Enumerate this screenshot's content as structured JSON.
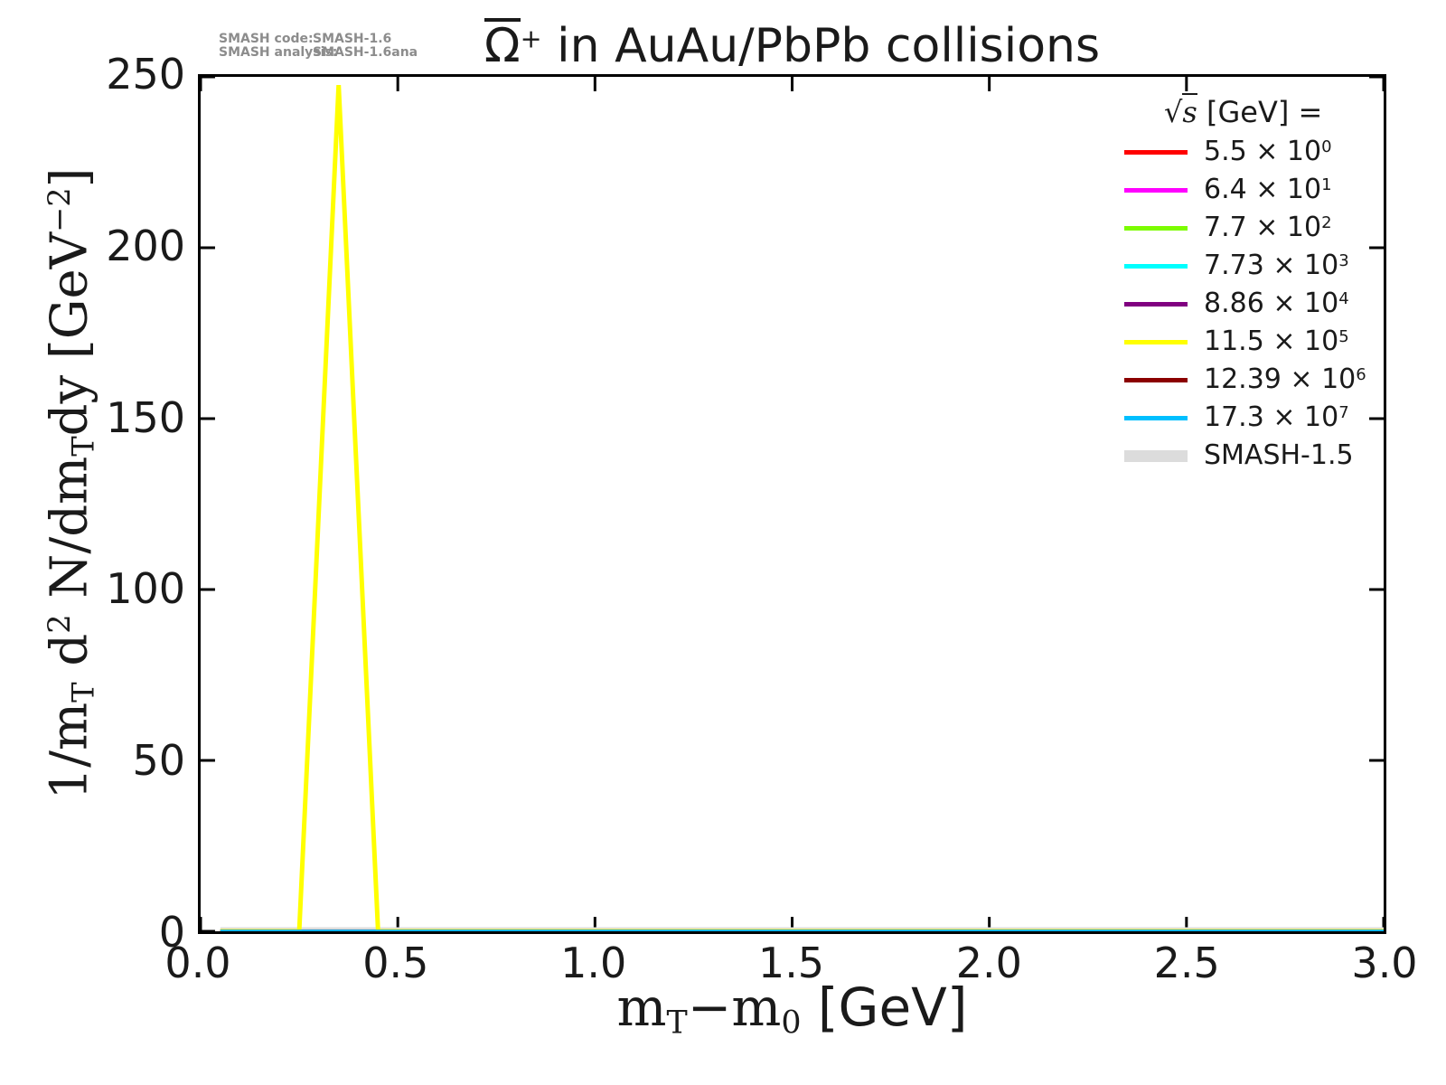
{
  "title": {
    "particle": "Ω",
    "charge": "+",
    "rest": " in AuAu/PbPb collisions"
  },
  "annotation": {
    "code_label": "SMASH code:",
    "code_value": "SMASH-1.6",
    "analysis_label": "SMASH analysis:",
    "analysis_value": "SMASH-1.6ana"
  },
  "legend": {
    "radical": "√",
    "radicand": "s",
    "title_rest": " [GeV] =",
    "entries": [
      {
        "base": "5.5 × 10",
        "exp": "0",
        "color": "#ff0000",
        "swatch_h": 5
      },
      {
        "base": "6.4 × 10",
        "exp": "1",
        "color": "#ff00ff",
        "swatch_h": 5
      },
      {
        "base": "7.7 × 10",
        "exp": "2",
        "color": "#7cfc00",
        "swatch_h": 5
      },
      {
        "base": "7.73 × 10",
        "exp": "3",
        "color": "#00ffff",
        "swatch_h": 5
      },
      {
        "base": "8.86 × 10",
        "exp": "4",
        "color": "#800080",
        "swatch_h": 5
      },
      {
        "base": "11.5 × 10",
        "exp": "5",
        "color": "#ffff00",
        "swatch_h": 5
      },
      {
        "base": "12.39 × 10",
        "exp": "6",
        "color": "#8b0000",
        "swatch_h": 5
      },
      {
        "base": "17.3 × 10",
        "exp": "7",
        "color": "#00bfff",
        "swatch_h": 5
      },
      {
        "base": "SMASH-1.5",
        "exp": "",
        "color": "#dcdcdc",
        "swatch_h": 13
      }
    ]
  },
  "axes": {
    "xlabel_segments": [
      {
        "t": "m"
      },
      {
        "sub": "T"
      },
      {
        "t": "−m"
      },
      {
        "sub": "0"
      },
      {
        "t": " [GeV]",
        "sans": true
      }
    ],
    "ylabel_segments": [
      {
        "t": "1/m"
      },
      {
        "sub": "T"
      },
      {
        "t": " d"
      },
      {
        "sup": "2"
      },
      {
        "t": " N/dm"
      },
      {
        "sub": "T"
      },
      {
        "t": "dy  [GeV"
      },
      {
        "sup": "−2"
      },
      {
        "t": "]"
      }
    ]
  },
  "chart_data": {
    "type": "line",
    "title": "Ω̄⁺ in AuAu/PbPb collisions",
    "xlabel": "mT−m0 [GeV]",
    "ylabel": "1/mT d²N/dmTdy [GeV⁻²]",
    "legend_title": "√s [GeV] =",
    "legend_position": "upper right",
    "grid": false,
    "xlim": [
      0.0,
      3.0
    ],
    "ylim": [
      0,
      250
    ],
    "xticks": [
      0.0,
      0.5,
      1.0,
      1.5,
      2.0,
      2.5,
      3.0
    ],
    "xtick_labels": [
      "0.0",
      "0.5",
      "1.0",
      "1.5",
      "2.0",
      "2.5",
      "3.0"
    ],
    "yticks": [
      0,
      50,
      100,
      150,
      200,
      250
    ],
    "ytick_labels": [
      "0",
      "50",
      "100",
      "150",
      "200",
      "250"
    ],
    "peak": {
      "series": "11.5 × 10⁵",
      "x": 0.35,
      "y": 247.6
    },
    "draw_order": [
      8,
      0,
      1,
      2,
      3,
      4,
      5,
      6,
      7
    ],
    "series": [
      {
        "name": "5.5 × 10⁰",
        "color": "#ff0000",
        "lw": 3.5,
        "x": [
          0.05,
          3.0
        ],
        "y": [
          0,
          0
        ]
      },
      {
        "name": "6.4 × 10¹",
        "color": "#ff00ff",
        "lw": 3.5,
        "x": [
          0.05,
          3.0
        ],
        "y": [
          0,
          0
        ]
      },
      {
        "name": "7.7 × 10²",
        "color": "#7cfc00",
        "lw": 3.5,
        "x": [
          0.05,
          3.0
        ],
        "y": [
          0,
          0
        ]
      },
      {
        "name": "7.73 × 10³",
        "color": "#00ffff",
        "lw": 3.5,
        "x": [
          0.05,
          3.0
        ],
        "y": [
          0,
          0
        ]
      },
      {
        "name": "8.86 × 10⁴",
        "color": "#800080",
        "lw": 3.5,
        "x": [
          0.05,
          3.0
        ],
        "y": [
          0,
          0
        ]
      },
      {
        "name": "11.5 × 10⁵",
        "color": "#ffff00",
        "lw": 5,
        "x": [
          0.05,
          0.25,
          0.35,
          0.45,
          3.0
        ],
        "y": [
          0,
          0,
          247.6,
          0,
          0
        ]
      },
      {
        "name": "12.39 × 10⁶",
        "color": "#8b0000",
        "lw": 3.5,
        "x": [
          0.05,
          3.0
        ],
        "y": [
          0,
          0
        ]
      },
      {
        "name": "17.3 × 10⁷",
        "color": "#00bfff",
        "lw": 3.5,
        "x": [
          0.05,
          3.0
        ],
        "y": [
          0,
          0
        ]
      },
      {
        "name": "SMASH-1.5",
        "color": "#dcdcdc",
        "lw": 9,
        "x": [
          0.05,
          3.0
        ],
        "y": [
          0,
          0
        ]
      }
    ]
  }
}
